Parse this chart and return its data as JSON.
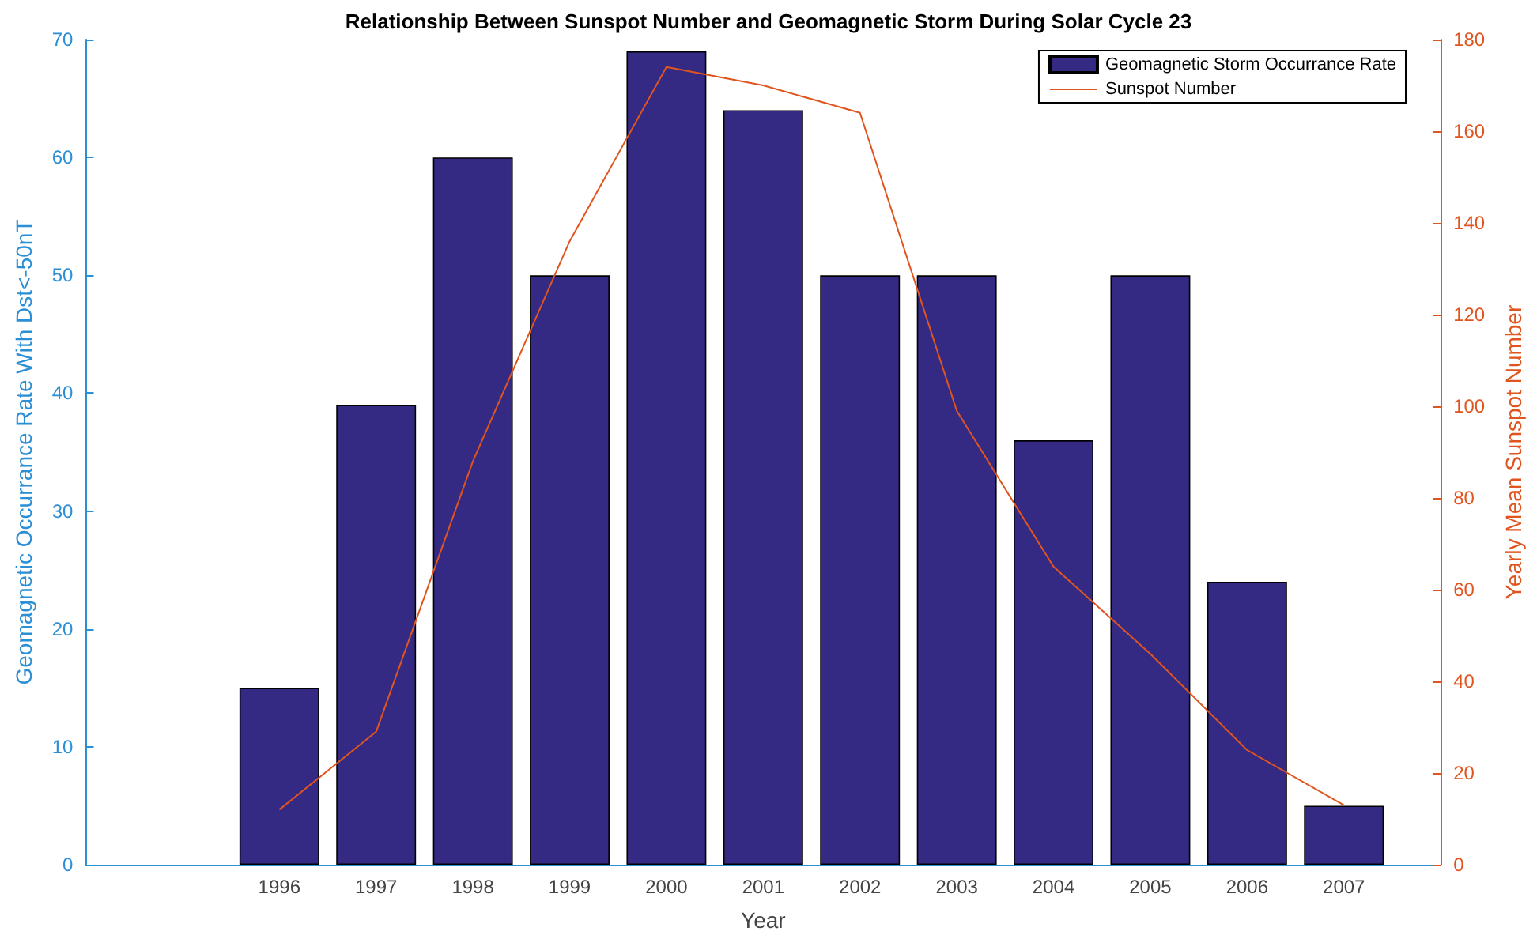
{
  "chart_data": {
    "type": "bar",
    "title": "Relationship Between Sunspot Number and Geomagnetic Storm During Solar Cycle 23",
    "xlabel": "Year",
    "ylabel": "Geomagnetic Occurrance Rate With Dst<-50nT",
    "y2label": "Yearly Mean Sunspot Number",
    "x": [
      1996,
      1997,
      1998,
      1999,
      2000,
      2001,
      2002,
      2003,
      2004,
      2005,
      2006,
      2007
    ],
    "series": [
      {
        "name": "Geomagnetic Storm Occurrance Rate",
        "color": "#342a84",
        "values": [
          15,
          39,
          60,
          50,
          69,
          64,
          50,
          50,
          36,
          50,
          24,
          5
        ]
      },
      {
        "name": "Sunspot Number",
        "type": "line",
        "axis": "y2",
        "color": "#e0551f",
        "values": [
          12,
          29,
          88,
          136,
          174,
          170,
          164,
          99,
          65,
          46,
          25,
          13
        ]
      }
    ],
    "xlim": [
      1994,
      2008
    ],
    "xticks": [
      1996,
      1997,
      1998,
      1999,
      2000,
      2001,
      2002,
      2003,
      2004,
      2005,
      2006,
      2007
    ],
    "ylim": [
      0,
      70
    ],
    "yticks": [
      0,
      10,
      20,
      30,
      40,
      50,
      60,
      70
    ],
    "y2lim": [
      0,
      180
    ],
    "y2ticks": [
      0,
      20,
      40,
      60,
      80,
      100,
      120,
      140,
      160,
      180
    ],
    "legend": "top right",
    "marker": "none"
  }
}
